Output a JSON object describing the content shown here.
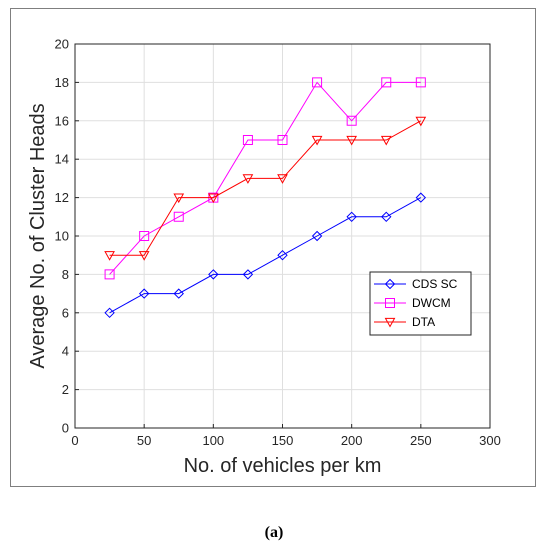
{
  "caption": "(a)",
  "chart_data": {
    "type": "line",
    "title": "",
    "xlabel": "No. of vehicles per km",
    "ylabel": "Average No. of Cluster Heads",
    "xlim": [
      0,
      300
    ],
    "ylim": [
      0,
      20
    ],
    "xticks": [
      0,
      50,
      100,
      150,
      200,
      250,
      300
    ],
    "yticks": [
      0,
      2,
      4,
      6,
      8,
      10,
      12,
      14,
      16,
      18,
      20
    ],
    "grid": true,
    "legend_position": "right",
    "x": [
      25,
      50,
      75,
      100,
      125,
      150,
      175,
      200,
      225,
      250
    ],
    "series": [
      {
        "name": "CDS SC",
        "color": "#0000ff",
        "marker": "diamond",
        "values": [
          6,
          7,
          7,
          8,
          8,
          9,
          10,
          11,
          11,
          12
        ]
      },
      {
        "name": "DWCM",
        "color": "#ff00ff",
        "marker": "square",
        "values": [
          8,
          10,
          11,
          12,
          15,
          15,
          18,
          16,
          18,
          18
        ]
      },
      {
        "name": "DTA",
        "color": "#ff0000",
        "marker": "triangle-down",
        "values": [
          9,
          9,
          12,
          12,
          13,
          13,
          15,
          15,
          15,
          16
        ]
      }
    ]
  }
}
